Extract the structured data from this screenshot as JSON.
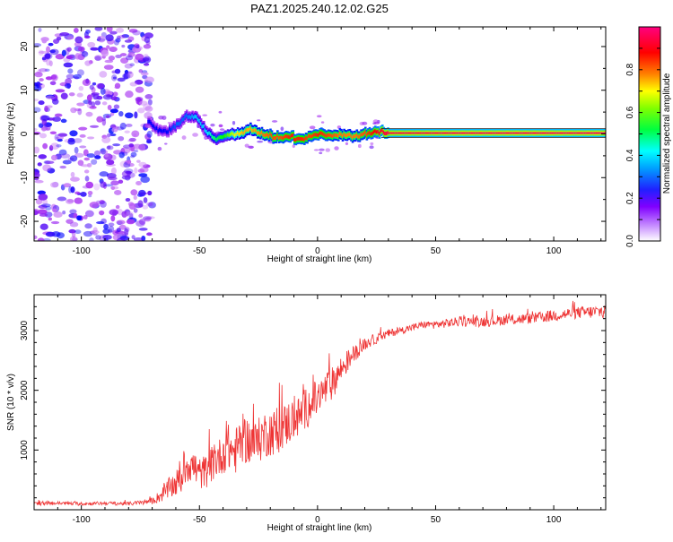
{
  "chart_data": [
    {
      "type": "heatmap",
      "title": "PAZ1.2025.240.12.02.G25",
      "xlabel": "Height of straight line (km)",
      "ylabel": "Frequency (Hz)",
      "xlim": [
        -120,
        122
      ],
      "ylim": [
        -24.5,
        24.5
      ],
      "x_ticks": [
        -100,
        -50,
        0,
        50,
        100
      ],
      "x_tick_labels": [
        "-100",
        "-50",
        "0",
        "50",
        "100"
      ],
      "y_ticks": [
        20,
        10,
        0,
        -10,
        -20
      ],
      "y_tick_labels": [
        "20",
        "10",
        "0",
        "-10",
        "-20"
      ],
      "colorbar": {
        "label": "Normalized spectral amplitude",
        "range": [
          0,
          1
        ],
        "ticks": [
          0.0,
          0.2,
          0.4,
          0.6,
          0.8
        ],
        "tick_labels": [
          "0.0",
          "0.2",
          "0.4",
          "0.6",
          "0.8"
        ],
        "colors": [
          "#ffffff",
          "#a020f0",
          "#0000ff",
          "#00ffff",
          "#00ff00",
          "#ffff00",
          "#ff7f00",
          "#ff0000",
          "#ff0080"
        ]
      },
      "signal_track": {
        "x": [
          -72,
          -68,
          -64,
          -60,
          -56,
          -52,
          -48,
          -44,
          -40,
          -36,
          -32,
          -28,
          -24,
          -20,
          -16,
          -12,
          -8,
          -4,
          0,
          5,
          10,
          15,
          20,
          25,
          30,
          60,
          90,
          122
        ],
        "y": [
          3,
          1,
          0.5,
          2,
          4,
          4,
          1,
          -1,
          -0.5,
          0,
          0.5,
          1,
          0,
          -0.5,
          -1,
          -0.5,
          -1.5,
          -0.5,
          0,
          -0.5,
          0,
          -0.5,
          0,
          0.5,
          0.2,
          0.2,
          0.2,
          0.2
        ],
        "amplitude": [
          0.25,
          0.25,
          0.25,
          0.3,
          0.3,
          0.35,
          0.35,
          0.45,
          0.5,
          0.6,
          0.7,
          0.7,
          0.75,
          0.8,
          0.8,
          0.85,
          0.85,
          0.8,
          0.85,
          0.8,
          0.75,
          0.75,
          0.8,
          0.9,
          0.95,
          0.97,
          0.97,
          0.97
        ]
      },
      "noise_region": {
        "x_range": [
          -120,
          -72
        ],
        "y_range": [
          -24.5,
          24.5
        ],
        "amplitude": 0.25
      }
    },
    {
      "type": "line",
      "title": "",
      "xlabel": "Height of straight line (km)",
      "ylabel": "SNR (10 * v/v)",
      "xlim": [
        -120,
        122
      ],
      "ylim": [
        0,
        3600
      ],
      "x_ticks": [
        -100,
        -50,
        0,
        50,
        100
      ],
      "x_tick_labels": [
        "-100",
        "-50",
        "0",
        "50",
        "100"
      ],
      "y_ticks": [
        1000,
        2000,
        3000
      ],
      "y_tick_labels": [
        "1000",
        "2000",
        "3000"
      ],
      "line_color": "#ee3333",
      "series": [
        {
          "name": "SNR",
          "x": [
            -120,
            -110,
            -100,
            -90,
            -80,
            -75,
            -70,
            -66,
            -62,
            -58,
            -55,
            -52,
            -50,
            -47,
            -44,
            -41,
            -38,
            -35,
            -32,
            -29,
            -26,
            -23,
            -20,
            -17,
            -14,
            -11,
            -8,
            -5,
            -2,
            0,
            3,
            6,
            9,
            12,
            15,
            18,
            21,
            24,
            27,
            30,
            35,
            40,
            45,
            50,
            60,
            70,
            80,
            90,
            100,
            110,
            122
          ],
          "y": [
            100,
            110,
            100,
            110,
            100,
            120,
            140,
            250,
            380,
            500,
            800,
            700,
            600,
            650,
            800,
            900,
            1050,
            950,
            1200,
            1150,
            1100,
            1250,
            1300,
            1300,
            1400,
            1500,
            1550,
            1700,
            1800,
            1850,
            2000,
            2100,
            2300,
            2450,
            2600,
            2700,
            2800,
            2850,
            2900,
            2950,
            3000,
            3050,
            3100,
            3100,
            3150,
            3150,
            3180,
            3200,
            3250,
            3300,
            3320
          ],
          "jitter": [
            30,
            30,
            30,
            30,
            30,
            40,
            50,
            120,
            200,
            250,
            350,
            300,
            280,
            280,
            320,
            320,
            400,
            380,
            420,
            400,
            380,
            400,
            400,
            380,
            380,
            380,
            350,
            350,
            340,
            320,
            300,
            280,
            240,
            200,
            150,
            120,
            100,
            90,
            80,
            70,
            60,
            60,
            60,
            70,
            80,
            90,
            90,
            90,
            100,
            100,
            120
          ]
        }
      ]
    }
  ]
}
